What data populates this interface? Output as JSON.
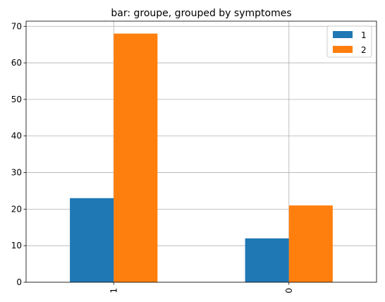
{
  "chart_data": {
    "type": "bar",
    "title": "bar: groupe, grouped by symptomes",
    "categories": [
      "1",
      "0"
    ],
    "series": [
      {
        "name": "1",
        "color": "#1f77b4",
        "values": [
          23,
          12
        ]
      },
      {
        "name": "2",
        "color": "#ff7f0e",
        "values": [
          68,
          21
        ]
      }
    ],
    "xlabel": "",
    "ylabel": "",
    "ylim": [
      0,
      71.4
    ],
    "yticks": [
      0,
      10,
      20,
      30,
      40,
      50,
      60,
      70
    ],
    "grid": true,
    "legend": "top-right",
    "xtick_rotation": 90
  }
}
